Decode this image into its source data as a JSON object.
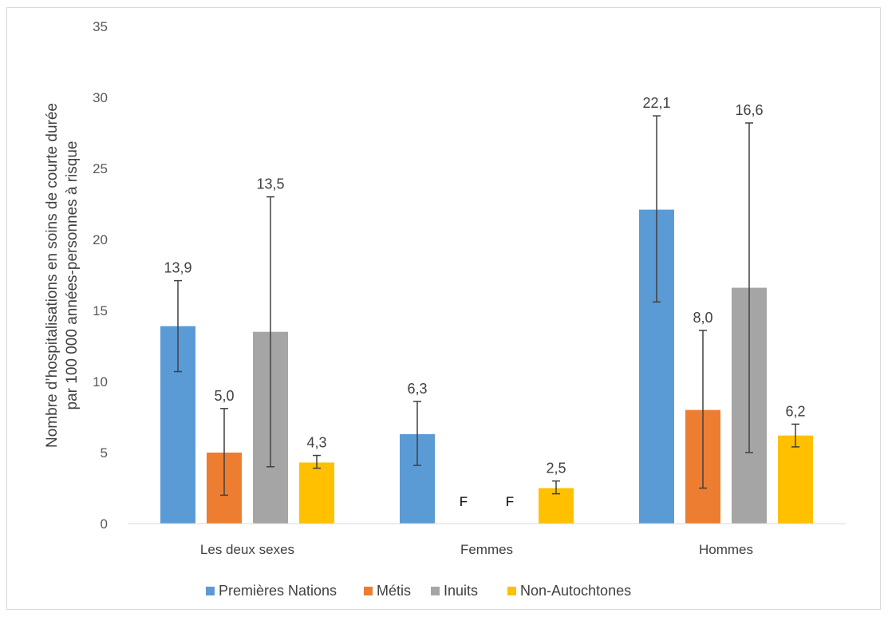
{
  "chart_data": {
    "type": "bar",
    "title": "",
    "ylabel_lines": [
      "Nombre d’hospitalisations en soins de courte durée",
      "par 100 000 années-personnes à risque"
    ],
    "xlabel": "",
    "ylim": [
      0,
      35
    ],
    "yticks": [
      0,
      5,
      10,
      15,
      20,
      25,
      30,
      35
    ],
    "categories": [
      "Les deux sexes",
      "Femmes",
      "Hommes"
    ],
    "series": [
      {
        "name": "Premières Nations",
        "color": "#5b9bd5",
        "values": [
          13.9,
          6.3,
          22.1
        ],
        "labels": [
          "13,9",
          "6,3",
          "22,1"
        ],
        "err_low": [
          10.7,
          4.1,
          15.6
        ],
        "err_high": [
          17.1,
          8.6,
          28.7
        ]
      },
      {
        "name": "Métis",
        "color": "#ed7d31",
        "values": [
          5.0,
          null,
          8.0
        ],
        "labels": [
          "5,0",
          "F",
          "8,0"
        ],
        "err_low": [
          2.0,
          null,
          2.5
        ],
        "err_high": [
          8.1,
          null,
          13.6
        ]
      },
      {
        "name": "Inuits",
        "color": "#a5a5a5",
        "values": [
          13.5,
          null,
          16.6
        ],
        "labels": [
          "13,5",
          "F",
          "16,6"
        ],
        "err_low": [
          4.0,
          null,
          5.0
        ],
        "err_high": [
          23.0,
          null,
          28.2
        ]
      },
      {
        "name": "Non-Autochtones",
        "color": "#ffc000",
        "values": [
          4.3,
          2.5,
          6.2
        ],
        "labels": [
          "4,3",
          "2,5",
          "6,2"
        ],
        "err_low": [
          3.9,
          2.1,
          5.4
        ],
        "err_high": [
          4.8,
          3.0,
          7.0
        ]
      }
    ],
    "error_bar_color": "#404040",
    "grid": false,
    "legend_position": "bottom"
  }
}
